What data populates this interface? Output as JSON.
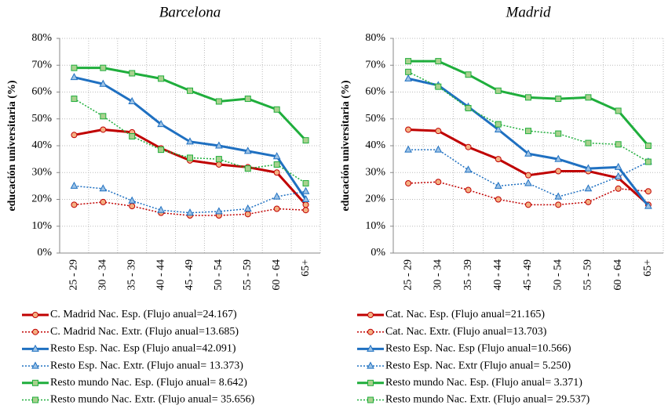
{
  "chart_data": [
    {
      "type": "line",
      "title": "Barcelona",
      "y_label": "educación universitaria (%)",
      "categories": [
        "25 - 29",
        "30 - 34",
        "35 - 39",
        "40 - 44",
        "45 - 49",
        "50 - 54",
        "55 - 59",
        "60 - 64",
        "65+"
      ],
      "ylim": [
        0,
        80
      ],
      "yticks": [
        {
          "value": 0,
          "label": "0%"
        },
        {
          "value": 10,
          "label": "10%"
        },
        {
          "value": 20,
          "label": "20%"
        },
        {
          "value": 30,
          "label": "30%"
        },
        {
          "value": 40,
          "label": "40%"
        },
        {
          "value": 50,
          "label": "50%"
        },
        {
          "value": 60,
          "label": "60%"
        },
        {
          "value": 70,
          "label": "70%"
        },
        {
          "value": 80,
          "label": "80%"
        }
      ],
      "grid": true,
      "series": [
        {
          "name": "C. Madrid Nac. Esp. (Flujo anual=24.167)",
          "color": "#c00000",
          "marker_fill": "#f4b183",
          "marker": "circle",
          "style": "solid",
          "values": [
            44,
            46,
            45,
            39,
            34.5,
            33,
            32,
            30,
            18
          ]
        },
        {
          "name": "C. Madrid Nac. Extr. (Flujo anual=13.685)",
          "color": "#c00000",
          "marker_fill": "#f4b183",
          "marker": "circle",
          "style": "dotted",
          "values": [
            18,
            19,
            17.5,
            15,
            14,
            14,
            14.5,
            16.5,
            16
          ]
        },
        {
          "name": "Resto Esp. Nac. Esp (Flujo anual=42.091)",
          "color": "#1f70c1",
          "marker_fill": "#9dc3e6",
          "marker": "triangle",
          "style": "solid",
          "values": [
            65.5,
            63,
            56.5,
            48,
            41.5,
            40,
            38,
            36,
            20
          ]
        },
        {
          "name": "Resto Esp. Nac. Extr. (Flujo anual= 13.373)",
          "color": "#1f70c1",
          "marker_fill": "#9dc3e6",
          "marker": "triangle",
          "style": "dotted",
          "values": [
            25,
            24,
            19.5,
            16,
            15,
            15.5,
            16.5,
            21,
            23
          ]
        },
        {
          "name": "Resto mundo Nac. Esp. (Flujo anual= 8.642)",
          "color": "#1fae3c",
          "marker_fill": "#a9d18e",
          "marker": "square",
          "style": "solid",
          "values": [
            69,
            69,
            67,
            65,
            60.5,
            56.5,
            57.5,
            53.5,
            42
          ]
        },
        {
          "name": "Resto mundo Nac. Extr. (Flujo anual= 35.656)",
          "color": "#1fae3c",
          "marker_fill": "#a9d18e",
          "marker": "square",
          "style": "dotted",
          "values": [
            57.5,
            51,
            43.5,
            38.5,
            35.5,
            35,
            31.5,
            33,
            26
          ]
        }
      ]
    },
    {
      "type": "line",
      "title": "Madrid",
      "y_label": "educación universitaria (%)",
      "categories": [
        "25 - 29",
        "30 - 34",
        "35 - 39",
        "40 - 44",
        "45 - 49",
        "50 - 54",
        "55 - 59",
        "60 - 64",
        "65+"
      ],
      "ylim": [
        0,
        80
      ],
      "yticks": [
        {
          "value": 0,
          "label": "0%"
        },
        {
          "value": 10,
          "label": "10%"
        },
        {
          "value": 20,
          "label": "20%"
        },
        {
          "value": 30,
          "label": "30%"
        },
        {
          "value": 40,
          "label": "40%"
        },
        {
          "value": 50,
          "label": "50%"
        },
        {
          "value": 60,
          "label": "60%"
        },
        {
          "value": 70,
          "label": "70%"
        },
        {
          "value": 80,
          "label": "80%"
        }
      ],
      "grid": true,
      "series": [
        {
          "name": "Cat. Nac. Esp. (Flujo anual=21.165)",
          "color": "#c00000",
          "marker_fill": "#f4b183",
          "marker": "circle",
          "style": "solid",
          "values": [
            46,
            45.5,
            39.5,
            35,
            29,
            30.5,
            30.5,
            28,
            18
          ]
        },
        {
          "name": "Cat. Nac. Extr. (Flujo anual=13.703)",
          "color": "#c00000",
          "marker_fill": "#f4b183",
          "marker": "circle",
          "style": "dotted",
          "values": [
            26,
            26.5,
            23.5,
            20,
            18,
            18,
            19,
            24,
            23
          ]
        },
        {
          "name": "Resto Esp. Nac. Esp (Flujo anual=10.566)",
          "color": "#1f70c1",
          "marker_fill": "#9dc3e6",
          "marker": "triangle",
          "style": "solid",
          "values": [
            65,
            62.5,
            54.5,
            46,
            37,
            35,
            31.5,
            32,
            17.5
          ]
        },
        {
          "name": "Resto Esp. Nac. Extr (Flujo anual= 5.250)",
          "color": "#1f70c1",
          "marker_fill": "#9dc3e6",
          "marker": "triangle",
          "style": "dotted",
          "values": [
            38.5,
            38.5,
            31,
            25,
            26,
            21,
            24,
            28.5,
            34
          ]
        },
        {
          "name": "Resto mundo Nac. Esp. (Flujo anual= 3.371)",
          "color": "#1fae3c",
          "marker_fill": "#a9d18e",
          "marker": "square",
          "style": "solid",
          "values": [
            71.5,
            71.5,
            66.5,
            60.5,
            58,
            57.5,
            58,
            53,
            40
          ]
        },
        {
          "name": "Resto mundo Nac. Extr. (Flujo anual= 29.537)",
          "color": "#1fae3c",
          "marker_fill": "#a9d18e",
          "marker": "square",
          "style": "dotted",
          "values": [
            67.5,
            62,
            54,
            48,
            45.5,
            44.5,
            41,
            40.5,
            34
          ]
        }
      ]
    }
  ]
}
